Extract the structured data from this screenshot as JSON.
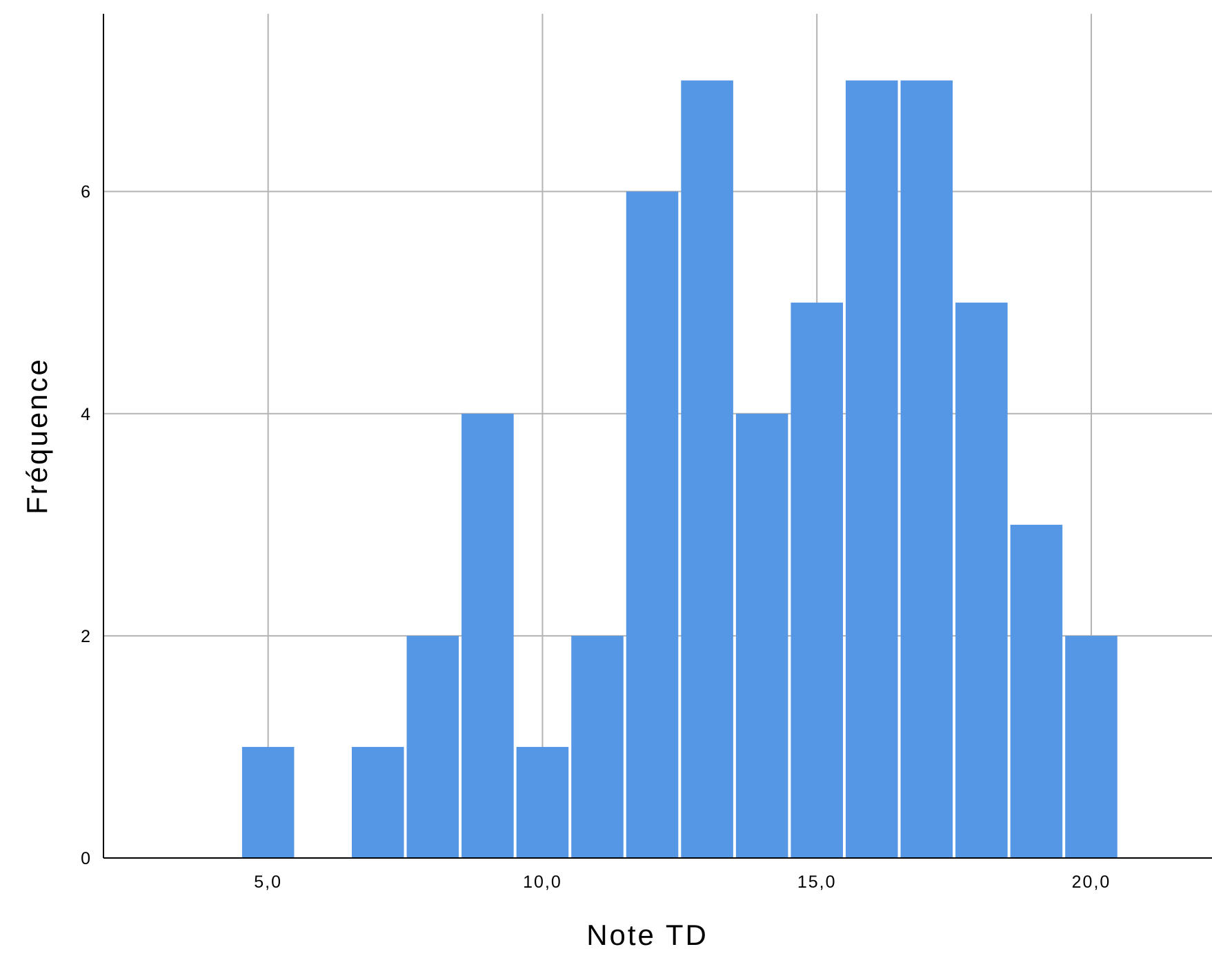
{
  "chart_data": {
    "type": "histogram",
    "xlabel": "Note TD",
    "ylabel": "Fréquence",
    "bar_color": "#5596E5",
    "grid_color": "#B3B3B3",
    "grid": true,
    "bin_width": 1,
    "xlim": [
      2.0,
      22.2
    ],
    "ylim": [
      0,
      7.6
    ],
    "x_ticks": [
      5,
      10,
      15,
      20
    ],
    "x_tick_labels": [
      "5,0",
      "10,0",
      "15,0",
      "20,0"
    ],
    "y_ticks": [
      0,
      2,
      4,
      6
    ],
    "y_tick_labels": [
      "0",
      "2",
      "4",
      "6"
    ],
    "bins": [
      {
        "x": 5,
        "count": 1
      },
      {
        "x": 7,
        "count": 1
      },
      {
        "x": 8,
        "count": 2
      },
      {
        "x": 9,
        "count": 4
      },
      {
        "x": 10,
        "count": 1
      },
      {
        "x": 11,
        "count": 2
      },
      {
        "x": 12,
        "count": 6
      },
      {
        "x": 13,
        "count": 7
      },
      {
        "x": 14,
        "count": 4
      },
      {
        "x": 15,
        "count": 5
      },
      {
        "x": 16,
        "count": 7
      },
      {
        "x": 17,
        "count": 7
      },
      {
        "x": 18,
        "count": 5
      },
      {
        "x": 19,
        "count": 3
      },
      {
        "x": 20,
        "count": 2
      }
    ]
  }
}
